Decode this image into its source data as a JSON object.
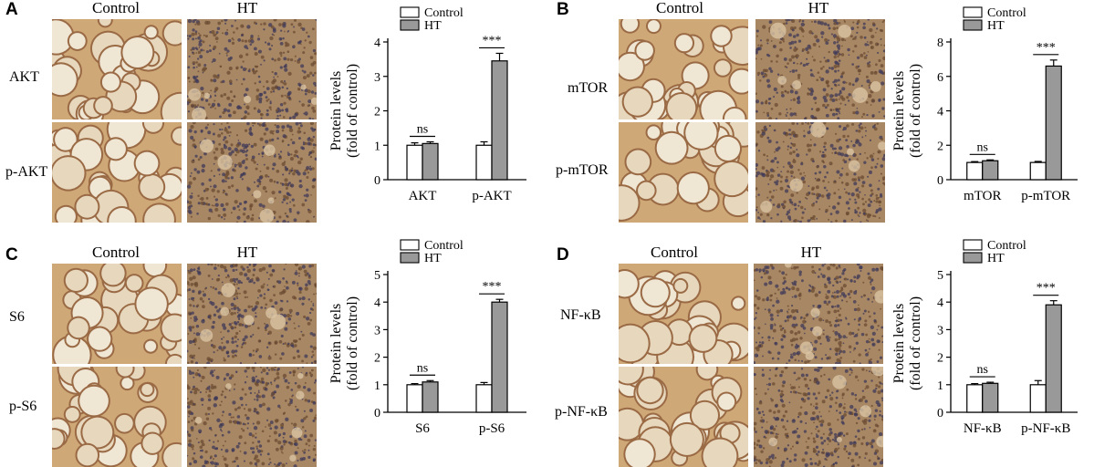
{
  "panels": [
    {
      "letter": "A",
      "col_labels": [
        "Control",
        "HT"
      ],
      "row_labels": [
        "AKT",
        "p-AKT"
      ],
      "row_label_align": "left"
    },
    {
      "letter": "B",
      "col_labels": [
        "Control",
        "HT"
      ],
      "row_labels": [
        "mTOR",
        "p-mTOR"
      ],
      "row_label_align": "right"
    },
    {
      "letter": "C",
      "col_labels": [
        "Control",
        "HT"
      ],
      "row_labels": [
        "S6",
        "p-S6"
      ],
      "row_label_align": "left"
    },
    {
      "letter": "D",
      "col_labels": [
        "Control",
        "HT"
      ],
      "row_labels": [
        "NF-κB",
        "p-NF-κB"
      ],
      "row_label_align": "right"
    }
  ],
  "chart_data": [
    {
      "type": "bar",
      "categories": [
        "AKT",
        "p-AKT"
      ],
      "series": [
        {
          "name": "Control",
          "values": [
            1.0,
            1.0
          ],
          "errors": [
            0.07,
            0.1
          ],
          "color": "#ffffff"
        },
        {
          "name": "HT",
          "values": [
            1.05,
            3.45
          ],
          "errors": [
            0.05,
            0.22
          ],
          "color": "#999999"
        }
      ],
      "ylabel": "Protein levels\n(fold of control)",
      "ylim": [
        0,
        4
      ],
      "yticks": [
        0,
        1,
        2,
        3,
        4
      ],
      "annotations": [
        "ns",
        "***"
      ],
      "legend": "top"
    },
    {
      "type": "bar",
      "categories": [
        "mTOR",
        "p-mTOR"
      ],
      "series": [
        {
          "name": "Control",
          "values": [
            1.0,
            1.0
          ],
          "errors": [
            0.05,
            0.06
          ],
          "color": "#ffffff"
        },
        {
          "name": "HT",
          "values": [
            1.1,
            6.6
          ],
          "errors": [
            0.05,
            0.35
          ],
          "color": "#999999"
        }
      ],
      "ylabel": "Protein levels\n(fold of control)",
      "ylim": [
        0,
        8
      ],
      "yticks": [
        0,
        2,
        4,
        6,
        8
      ],
      "annotations": [
        "ns",
        "***"
      ],
      "legend": "top"
    },
    {
      "type": "bar",
      "categories": [
        "S6",
        "p-S6"
      ],
      "series": [
        {
          "name": "Control",
          "values": [
            1.0,
            1.0
          ],
          "errors": [
            0.04,
            0.08
          ],
          "color": "#ffffff"
        },
        {
          "name": "HT",
          "values": [
            1.1,
            4.0
          ],
          "errors": [
            0.05,
            0.1
          ],
          "color": "#999999"
        }
      ],
      "ylabel": "Protein levels\n(fold of control)",
      "ylim": [
        0,
        5
      ],
      "yticks": [
        0,
        1,
        2,
        3,
        4,
        5
      ],
      "annotations": [
        "ns",
        "***"
      ],
      "legend": "top"
    },
    {
      "type": "bar",
      "categories": [
        "NF-κB",
        "p-NF-κB"
      ],
      "series": [
        {
          "name": "Control",
          "values": [
            1.0,
            1.0
          ],
          "errors": [
            0.04,
            0.15
          ],
          "color": "#ffffff"
        },
        {
          "name": "HT",
          "values": [
            1.05,
            3.9
          ],
          "errors": [
            0.04,
            0.15
          ],
          "color": "#999999"
        }
      ],
      "ylabel": "Protein levels\n(fold of control)",
      "ylim": [
        0,
        5
      ],
      "yticks": [
        0,
        1,
        2,
        3,
        4,
        5
      ],
      "annotations": [
        "ns",
        "***"
      ],
      "legend": "top"
    }
  ]
}
